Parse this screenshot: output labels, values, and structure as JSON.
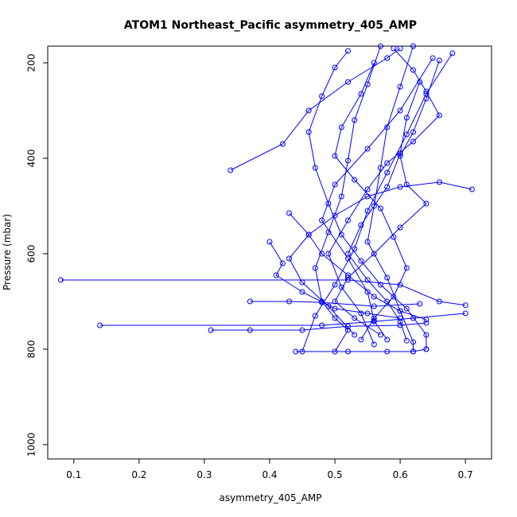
{
  "chart_data": {
    "type": "scatter",
    "title": "ATOM1 Northeast_Pacific asymmetry_405_AMP",
    "xlabel": "asymmetry_405_AMP",
    "ylabel": "Pressure (mbar)",
    "xlim": [
      0.06,
      0.74
    ],
    "ylim": [
      1030,
      165
    ],
    "y_reversed": true,
    "xticks": [
      0.1,
      0.2,
      0.3,
      0.4,
      0.5,
      0.6,
      0.7
    ],
    "yticks": [
      200,
      400,
      600,
      800,
      1000
    ],
    "grid": false,
    "legend": "none",
    "series_color": "#0000ff",
    "series": [
      {
        "values": [
          [
            0.57,
            165
          ],
          [
            0.55,
            245
          ],
          [
            0.53,
            320
          ],
          [
            0.52,
            405
          ],
          [
            0.51,
            480
          ],
          [
            0.49,
            555
          ],
          [
            0.47,
            630
          ],
          [
            0.48,
            700
          ],
          [
            0.5,
            735
          ],
          [
            0.52,
            760
          ],
          [
            0.5,
            805
          ]
        ]
      },
      {
        "values": [
          [
            0.62,
            165
          ],
          [
            0.6,
            250
          ],
          [
            0.58,
            335
          ],
          [
            0.57,
            420
          ],
          [
            0.56,
            500
          ],
          [
            0.55,
            575
          ],
          [
            0.58,
            650
          ],
          [
            0.6,
            720
          ],
          [
            0.62,
            785
          ],
          [
            0.62,
            805
          ]
        ]
      },
      {
        "values": [
          [
            0.65,
            190
          ],
          [
            0.6,
            300
          ],
          [
            0.55,
            380
          ],
          [
            0.5,
            455
          ],
          [
            0.48,
            530
          ],
          [
            0.52,
            610
          ],
          [
            0.55,
            680
          ],
          [
            0.56,
            740
          ],
          [
            0.58,
            780
          ]
        ]
      },
      {
        "values": [
          [
            0.34,
            425
          ],
          [
            0.42,
            370
          ],
          [
            0.46,
            300
          ],
          [
            0.52,
            240
          ],
          [
            0.58,
            190
          ],
          [
            0.6,
            170
          ]
        ]
      },
      {
        "values": [
          [
            0.68,
            180
          ],
          [
            0.64,
            265
          ],
          [
            0.61,
            350
          ],
          [
            0.58,
            430
          ],
          [
            0.55,
            510
          ],
          [
            0.53,
            590
          ],
          [
            0.5,
            665
          ],
          [
            0.47,
            730
          ],
          [
            0.45,
            805
          ]
        ]
      },
      {
        "values": [
          [
            0.71,
            465
          ],
          [
            0.66,
            450
          ],
          [
            0.6,
            460
          ],
          [
            0.55,
            480
          ],
          [
            0.5,
            520
          ],
          [
            0.46,
            560
          ],
          [
            0.43,
            610
          ],
          [
            0.45,
            660
          ],
          [
            0.49,
            710
          ],
          [
            0.53,
            770
          ]
        ]
      },
      {
        "values": [
          [
            0.08,
            655
          ],
          [
            0.52,
            655
          ],
          [
            0.6,
            665
          ],
          [
            0.66,
            700
          ],
          [
            0.7,
            708
          ]
        ]
      },
      {
        "values": [
          [
            0.14,
            750
          ],
          [
            0.48,
            750
          ],
          [
            0.56,
            742
          ],
          [
            0.62,
            735
          ],
          [
            0.7,
            725
          ]
        ]
      },
      {
        "values": [
          [
            0.31,
            760
          ],
          [
            0.37,
            760
          ],
          [
            0.45,
            760
          ],
          [
            0.52,
            752
          ],
          [
            0.6,
            750
          ],
          [
            0.64,
            745
          ]
        ]
      },
      {
        "values": [
          [
            0.37,
            700
          ],
          [
            0.43,
            700
          ],
          [
            0.48,
            702
          ],
          [
            0.56,
            710
          ],
          [
            0.63,
            705
          ]
        ]
      },
      {
        "values": [
          [
            0.4,
            575
          ],
          [
            0.42,
            620
          ],
          [
            0.41,
            645
          ],
          [
            0.45,
            680
          ],
          [
            0.5,
            715
          ],
          [
            0.55,
            725
          ],
          [
            0.6,
            735
          ]
        ]
      },
      {
        "values": [
          [
            0.43,
            515
          ],
          [
            0.46,
            560
          ],
          [
            0.48,
            600
          ],
          [
            0.52,
            645
          ],
          [
            0.56,
            690
          ],
          [
            0.6,
            720
          ],
          [
            0.64,
            738
          ]
        ]
      },
      {
        "values": [
          [
            0.59,
            170
          ],
          [
            0.62,
            215
          ],
          [
            0.64,
            260
          ],
          [
            0.66,
            310
          ],
          [
            0.62,
            365
          ],
          [
            0.58,
            410
          ],
          [
            0.55,
            465
          ],
          [
            0.52,
            530
          ],
          [
            0.49,
            600
          ],
          [
            0.51,
            670
          ],
          [
            0.54,
            725
          ],
          [
            0.56,
            790
          ]
        ]
      },
      {
        "values": [
          [
            0.52,
            175
          ],
          [
            0.5,
            210
          ],
          [
            0.48,
            270
          ],
          [
            0.46,
            345
          ],
          [
            0.47,
            420
          ],
          [
            0.49,
            495
          ],
          [
            0.51,
            560
          ],
          [
            0.54,
            615
          ],
          [
            0.57,
            665
          ],
          [
            0.61,
            715
          ],
          [
            0.64,
            770
          ],
          [
            0.64,
            800
          ]
        ]
      },
      {
        "values": [
          [
            0.44,
            805
          ],
          [
            0.52,
            805
          ],
          [
            0.58,
            805
          ],
          [
            0.62,
            805
          ],
          [
            0.64,
            800
          ]
        ]
      },
      {
        "values": [
          [
            0.63,
            240
          ],
          [
            0.61,
            315
          ],
          [
            0.6,
            390
          ],
          [
            0.58,
            460
          ],
          [
            0.54,
            540
          ],
          [
            0.52,
            600
          ],
          [
            0.55,
            655
          ],
          [
            0.58,
            700
          ],
          [
            0.6,
            742
          ],
          [
            0.61,
            782
          ]
        ]
      },
      {
        "values": [
          [
            0.66,
            195
          ],
          [
            0.64,
            275
          ],
          [
            0.62,
            345
          ],
          [
            0.6,
            395
          ],
          [
            0.61,
            455
          ],
          [
            0.64,
            495
          ],
          [
            0.6,
            545
          ],
          [
            0.56,
            600
          ],
          [
            0.52,
            650
          ],
          [
            0.5,
            700
          ],
          [
            0.53,
            735
          ],
          [
            0.57,
            770
          ]
        ]
      },
      {
        "values": [
          [
            0.56,
            200
          ],
          [
            0.54,
            265
          ],
          [
            0.51,
            335
          ],
          [
            0.5,
            395
          ],
          [
            0.53,
            445
          ],
          [
            0.57,
            505
          ],
          [
            0.59,
            565
          ],
          [
            0.61,
            630
          ],
          [
            0.59,
            690
          ],
          [
            0.56,
            735
          ],
          [
            0.54,
            780
          ]
        ]
      }
    ]
  }
}
